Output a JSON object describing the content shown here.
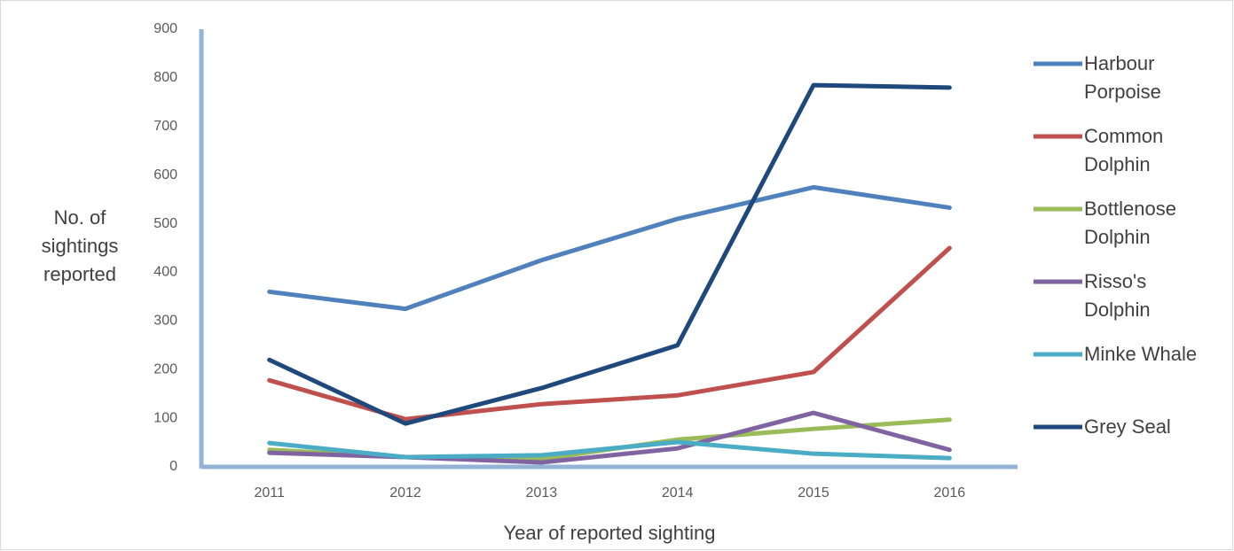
{
  "chart_data": {
    "type": "line",
    "x_label": "Year of reported sighting",
    "y_label": "No. of sightings reported",
    "categories": [
      "2011",
      "2012",
      "2013",
      "2014",
      "2015",
      "2016"
    ],
    "series": [
      {
        "name": "Harbour Porpoise",
        "color": "#4f81bd",
        "values": [
          360,
          325,
          425,
          510,
          575,
          533
        ]
      },
      {
        "name": "Common Dolphin",
        "color": "#c0504d",
        "values": [
          178,
          98,
          129,
          147,
          195,
          450
        ]
      },
      {
        "name": "Bottlenose Dolphin",
        "color": "#9bbb59",
        "values": [
          35,
          20,
          16,
          56,
          78,
          97
        ]
      },
      {
        "name": "Risso's Dolphin",
        "color": "#8064a2",
        "values": [
          29,
          20,
          9,
          38,
          111,
          35
        ]
      },
      {
        "name": "Minke Whale",
        "color": "#4bacc6",
        "values": [
          49,
          20,
          24,
          51,
          27,
          18
        ]
      },
      {
        "name": "Grey Seal",
        "color": "#1f497d",
        "values": [
          220,
          89,
          162,
          250,
          785,
          780
        ]
      }
    ],
    "ylim": [
      0,
      900
    ],
    "yticks": [
      0,
      100,
      200,
      300,
      400,
      500,
      600,
      700,
      800,
      900
    ],
    "legend": "right"
  }
}
